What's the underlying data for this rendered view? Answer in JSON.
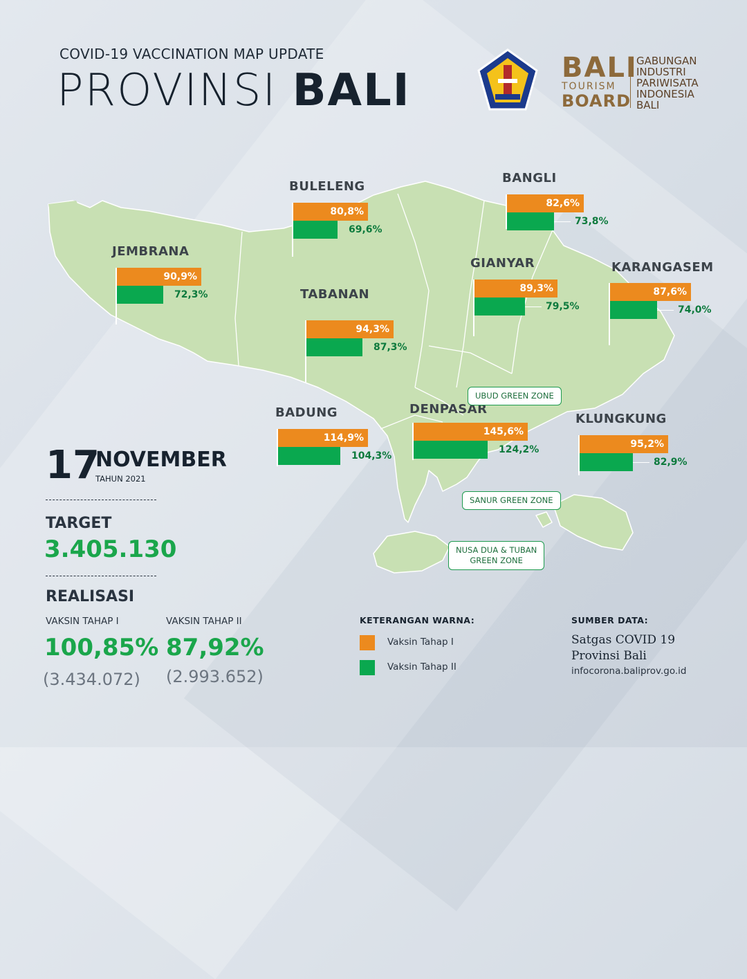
{
  "header": {
    "subtitle": "COVID-19 VACCINATION MAP UPDATE",
    "title_light": "PROVINSI ",
    "title_bold": "BALI"
  },
  "logos": {
    "btb_big": "BALI",
    "btb_small": "TOURISM",
    "btb_board": "BOARD",
    "gipi": "GABUNGAN\nINDUSTRI\nPARIWISATA\nINDONESIA\nBALI"
  },
  "colors": {
    "tahap1": "#ec8a1e",
    "tahap2": "#0aa84f",
    "map_land": "#c8e0b3",
    "accent_green": "#1aa64b"
  },
  "chart_data": {
    "type": "bar",
    "series": [
      {
        "name": "Vaksin Tahap I",
        "color": "#ec8a1e"
      },
      {
        "name": "Vaksin Tahap II",
        "color": "#0aa84f"
      }
    ],
    "regions": [
      {
        "name": "BULELENG",
        "tahap1": 80.8,
        "tahap2": 69.6,
        "tahap1_label": "80,8%",
        "tahap2_label": "69,6%"
      },
      {
        "name": "BANGLI",
        "tahap1": 82.6,
        "tahap2": 73.8,
        "tahap1_label": "82,6%",
        "tahap2_label": "73,8%"
      },
      {
        "name": "JEMBRANA",
        "tahap1": 90.9,
        "tahap2": 72.3,
        "tahap1_label": "90,9%",
        "tahap2_label": "72,3%"
      },
      {
        "name": "GIANYAR",
        "tahap1": 89.3,
        "tahap2": 79.5,
        "tahap1_label": "89,3%",
        "tahap2_label": "79,5%"
      },
      {
        "name": "KARANGASEM",
        "tahap1": 87.6,
        "tahap2": 74.0,
        "tahap1_label": "87,6%",
        "tahap2_label": "74,0%"
      },
      {
        "name": "TABANAN",
        "tahap1": 94.3,
        "tahap2": 87.3,
        "tahap1_label": "94,3%",
        "tahap2_label": "87,3%"
      },
      {
        "name": "BADUNG",
        "tahap1": 114.9,
        "tahap2": 104.3,
        "tahap1_label": "114,9%",
        "tahap2_label": "104,3%"
      },
      {
        "name": "DENPASAR",
        "tahap1": 145.6,
        "tahap2": 124.2,
        "tahap1_label": "145,6%",
        "tahap2_label": "124,2%"
      },
      {
        "name": "KLUNGKUNG",
        "tahap1": 95.2,
        "tahap2": 82.9,
        "tahap1_label": "95,2%",
        "tahap2_label": "82,9%"
      }
    ]
  },
  "zones": {
    "ubud": "UBUD GREEN ZONE",
    "sanur": "SANUR GREEN ZONE",
    "nusadua": "NUSA DUA & TUBAN\nGREEN ZONE"
  },
  "stats": {
    "day": "17",
    "month": "NOVEMBER",
    "year": "TAHUN 2021",
    "target_label": "TARGET",
    "target_value": "3.405.130",
    "realisasi_label": "REALISASI",
    "tahap1_label": "VAKSIN TAHAP I",
    "tahap1_pct": "100,85%",
    "tahap1_count": "(3.434.072)",
    "tahap2_label": "VAKSIN TAHAP II",
    "tahap2_pct": "87,92%",
    "tahap2_count": "(2.993.652)"
  },
  "legend": {
    "title": "KETERANGAN WARNA:",
    "item1": "Vaksin Tahap I",
    "item2": "Vaksin Tahap II"
  },
  "source": {
    "title": "SUMBER DATA:",
    "line1": "Satgas COVID 19",
    "line2": "Provinsi Bali",
    "url": "infocorona.baliprov.go.id"
  }
}
